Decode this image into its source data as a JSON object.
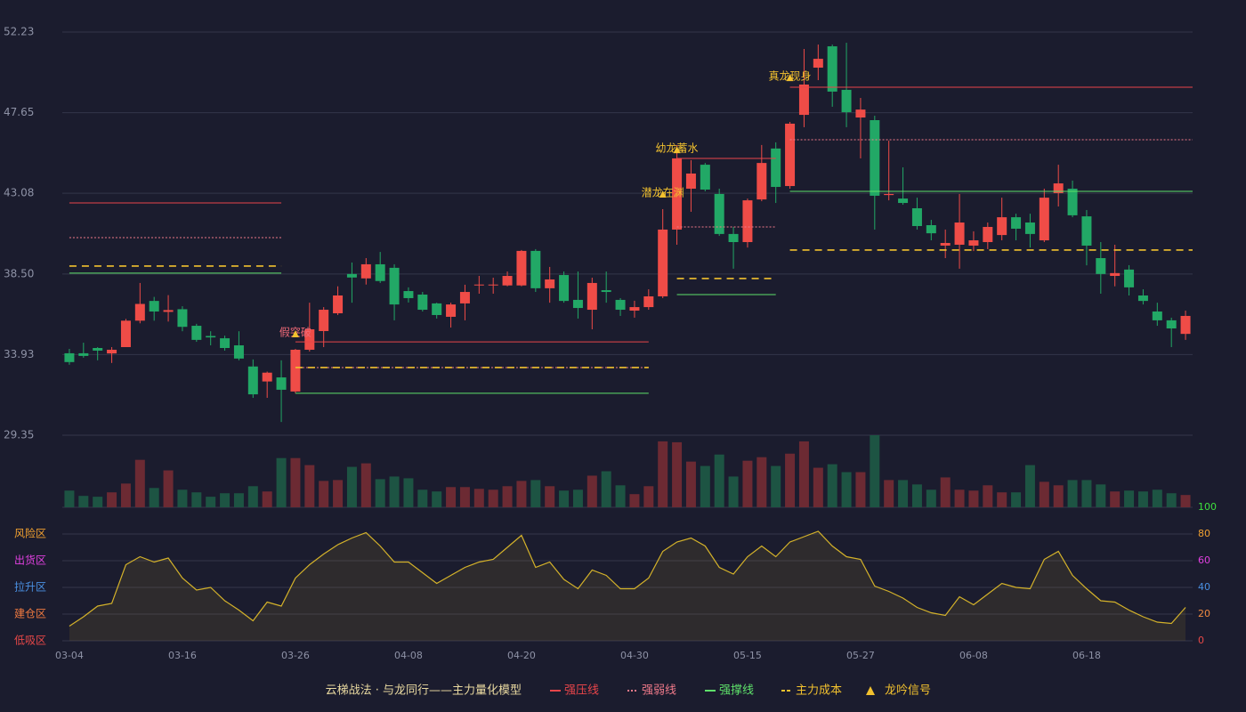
{
  "chart_data": [
    {
      "type": "candlestick",
      "categories": [
        "03-04",
        null,
        null,
        null,
        null,
        null,
        null,
        null,
        "03-16",
        null,
        null,
        null,
        null,
        null,
        null,
        null,
        "03-26",
        null,
        null,
        null,
        null,
        null,
        null,
        null,
        "04-08",
        null,
        null,
        null,
        null,
        null,
        null,
        null,
        "04-20",
        null,
        null,
        null,
        null,
        null,
        null,
        null,
        "04-30",
        null,
        null,
        null,
        null,
        null,
        null,
        null,
        "05-15",
        null,
        null,
        null,
        null,
        null,
        null,
        null,
        "05-27",
        null,
        null,
        null,
        null,
        null,
        null,
        null,
        "06-08",
        null,
        null,
        null,
        null,
        null,
        null,
        null,
        "06-18",
        null,
        null,
        null,
        null,
        null,
        null,
        null
      ],
      "open": [
        34.0,
        34.0,
        34.3,
        33.99,
        34.35,
        35.85,
        36.97,
        36.35,
        36.5,
        35.56,
        34.98,
        34.85,
        34.45,
        33.25,
        32.4,
        32.63,
        31.83,
        34.2,
        35.26,
        36.27,
        38.5,
        38.25,
        39.05,
        38.85,
        37.53,
        37.33,
        36.83,
        36.07,
        36.83,
        37.85,
        37.85,
        37.85,
        37.85,
        39.81,
        37.69,
        38.44,
        37.03,
        36.47,
        37.58,
        37.03,
        36.42,
        36.62,
        37.23,
        41.02,
        43.34,
        44.7,
        43.04,
        40.77,
        40.31,
        42.73,
        45.62,
        43.49,
        47.53,
        50.21,
        51.42,
        48.95,
        47.38,
        47.23,
        42.98,
        42.78,
        42.23,
        41.27,
        40.11,
        40.16,
        40.11,
        40.31,
        40.71,
        41.72,
        41.42,
        40.41,
        43.09,
        43.34,
        41.77,
        39.4,
        38.39,
        38.75,
        37.28,
        36.37,
        35.87,
        35.1
      ],
      "high": [
        34.25,
        34.6,
        34.35,
        34.35,
        35.95,
        37.99,
        37.2,
        37.3,
        36.67,
        35.67,
        35.25,
        35.0,
        35.25,
        33.65,
        32.96,
        33.6,
        34.25,
        36.87,
        36.62,
        37.8,
        39.15,
        39.4,
        39.75,
        39.05,
        37.74,
        37.48,
        36.87,
        36.87,
        37.89,
        38.39,
        38.29,
        38.64,
        39.86,
        39.91,
        38.9,
        38.64,
        38.64,
        38.29,
        38.64,
        37.13,
        36.98,
        37.63,
        42.18,
        45.82,
        44.96,
        44.8,
        43.34,
        41.17,
        42.78,
        45.82,
        45.97,
        47.13,
        51.27,
        51.52,
        51.52,
        51.62,
        48.49,
        47.48,
        46.07,
        44.55,
        42.83,
        41.57,
        41.02,
        43.04,
        40.92,
        41.42,
        42.83,
        41.92,
        41.92,
        43.34,
        44.7,
        43.8,
        42.13,
        40.31,
        40.16,
        39.0,
        37.63,
        36.87,
        36.02,
        36.42
      ],
      "low": [
        33.35,
        33.75,
        33.6,
        33.45,
        34.35,
        35.7,
        35.85,
        35.8,
        35.25,
        34.65,
        34.45,
        34.15,
        33.6,
        31.47,
        31.47,
        30.1,
        31.73,
        34.1,
        34.35,
        36.17,
        36.87,
        37.9,
        37.99,
        35.87,
        36.88,
        36.37,
        35.97,
        35.46,
        35.87,
        37.38,
        37.38,
        37.8,
        37.8,
        37.48,
        36.87,
        36.87,
        35.97,
        35.36,
        36.87,
        36.12,
        36.02,
        36.47,
        37.13,
        40.16,
        42.03,
        43.19,
        40.66,
        38.8,
        40.0,
        42.63,
        42.53,
        43.34,
        46.83,
        49.5,
        47.99,
        46.83,
        45.06,
        41.02,
        42.68,
        42.43,
        41.02,
        40.41,
        39.4,
        38.8,
        39.8,
        39.91,
        40.41,
        40.41,
        40.0,
        40.31,
        42.33,
        41.72,
        38.99,
        37.38,
        37.8,
        37.28,
        36.77,
        35.56,
        34.35,
        34.76
      ],
      "close": [
        33.5,
        33.85,
        34.15,
        34.2,
        35.85,
        36.8,
        36.37,
        36.45,
        35.5,
        34.76,
        34.9,
        34.3,
        33.7,
        31.67,
        32.9,
        31.93,
        34.2,
        35.36,
        36.47,
        37.28,
        38.3,
        39.05,
        38.1,
        36.77,
        37.13,
        36.47,
        36.17,
        36.77,
        37.48,
        37.9,
        37.9,
        38.39,
        39.81,
        37.69,
        38.19,
        36.97,
        36.57,
        37.99,
        37.48,
        36.47,
        36.62,
        37.23,
        41.02,
        45.06,
        44.2,
        43.29,
        40.77,
        40.31,
        42.68,
        44.8,
        43.44,
        47.03,
        49.25,
        50.71,
        48.85,
        47.68,
        47.83,
        42.94,
        43.04,
        42.53,
        41.22,
        40.81,
        40.26,
        41.42,
        40.41,
        41.17,
        41.72,
        41.07,
        40.77,
        42.83,
        43.64,
        41.83,
        40.11,
        38.5,
        38.55,
        37.74,
        36.97,
        35.87,
        35.41,
        36.12
      ],
      "up_color": "#ef4c47",
      "down_color": "#22a866",
      "ylim": [
        29.35,
        52.23
      ],
      "yticks": [
        29.35,
        33.93,
        {
          "value": 38.5,
          "label": "38.50"
        },
        43.08,
        47.65,
        52.23
      ],
      "grid": true,
      "levels": [
        {
          "start": 0,
          "end": 15,
          "pressure": 42.53,
          "weak": 40.56,
          "support": 38.55,
          "cost": 38.95
        },
        {
          "start": 16,
          "end": 41,
          "pressure": 34.65,
          "weak": 33.19,
          "support": 31.73,
          "cost": 33.19
        },
        {
          "start": 43,
          "end": 50,
          "pressure": 45.06,
          "weak": 41.17,
          "support": 37.33,
          "cost": 38.24
        },
        {
          "start": 51,
          "end": 79,
          "pressure": 49.1,
          "weak": 46.12,
          "support": 43.19,
          "cost": 39.86
        }
      ],
      "signals": [
        {
          "index": 16,
          "label": "假突破",
          "value": 35.16,
          "color": "#f06a78"
        },
        {
          "index": 42,
          "label": "潜龙在渊",
          "value": 43.09,
          "color": "#f2c12e"
        },
        {
          "index": 43,
          "label": "幼龙蓄水",
          "value": 45.61,
          "color": "#f2c12e"
        },
        {
          "index": 51,
          "label": "真龙现身",
          "value": 49.7,
          "color": "#f2c12e"
        }
      ],
      "legend_title": "云梯战法 · 与龙同行——主力量化模型",
      "legend": [
        {
          "name": "强压线",
          "color": "#e8454a",
          "style": "solid"
        },
        {
          "name": "强弱线",
          "color": "#f07a8a",
          "style": "dotted"
        },
        {
          "name": "强撑线",
          "color": "#5ee06a",
          "style": "solid"
        },
        {
          "name": "主力成本",
          "color": "#f2c12e",
          "style": "dashed"
        },
        {
          "name": "龙吟信号",
          "color": "#f2c12e",
          "style": "triangle"
        }
      ]
    },
    {
      "type": "bar",
      "values": [
        19,
        13,
        12,
        17,
        27,
        54,
        22,
        42,
        20,
        17,
        12,
        16,
        16,
        24,
        18,
        56,
        56,
        48,
        30,
        31,
        46,
        50,
        32,
        35,
        33,
        20,
        18,
        23,
        23,
        21,
        20,
        24,
        30,
        31,
        24,
        19,
        20,
        36,
        41,
        25,
        15,
        24,
        75,
        74,
        52,
        47,
        60,
        35,
        53,
        57,
        47,
        61,
        75,
        45,
        49,
        40,
        40,
        82,
        31,
        31,
        26,
        20,
        34,
        20,
        19,
        25,
        17,
        17,
        48,
        29,
        25,
        31,
        31,
        26,
        18,
        19,
        18,
        20,
        16,
        14
      ],
      "up_color": "#6c2a33",
      "down_color": "#1d5443",
      "ylim": [
        0,
        82
      ]
    },
    {
      "type": "area",
      "values": [
        11,
        18,
        26,
        28,
        57,
        63,
        59,
        62,
        47,
        38,
        40,
        30,
        23,
        15,
        29,
        26,
        47,
        57,
        65,
        72,
        77,
        81,
        71,
        59,
        59,
        51,
        43,
        49,
        55,
        59,
        61,
        70,
        79,
        55,
        59,
        46,
        39,
        53,
        49,
        39,
        39,
        47,
        67,
        74,
        77,
        71,
        55,
        50,
        63,
        71,
        63,
        74,
        78,
        82,
        71,
        63,
        61,
        41,
        37,
        32,
        25,
        21,
        19,
        33,
        27,
        35,
        43,
        40,
        39,
        61,
        67,
        49,
        39,
        30,
        29,
        23,
        18,
        14,
        13,
        25
      ],
      "color": "#d4b22a",
      "ylim": [
        0,
        100
      ],
      "yticks": [
        0,
        20,
        40,
        60,
        80,
        100
      ],
      "ytick_colors": [
        "#e84848",
        "#f08a40",
        "#4a90e2",
        "#e040e0",
        "#f0a030",
        "#3ee03e"
      ],
      "zones": [
        {
          "label": "风险区",
          "value": 80,
          "color": "#f0a030"
        },
        {
          "label": "出货区",
          "value": 60,
          "color": "#e040e0"
        },
        {
          "label": "拉升区",
          "value": 40,
          "color": "#4a90e2"
        },
        {
          "label": "建仓区",
          "value": 20,
          "color": "#f07a40"
        },
        {
          "label": "低吸区",
          "value": 0,
          "color": "#e84848"
        }
      ]
    }
  ]
}
